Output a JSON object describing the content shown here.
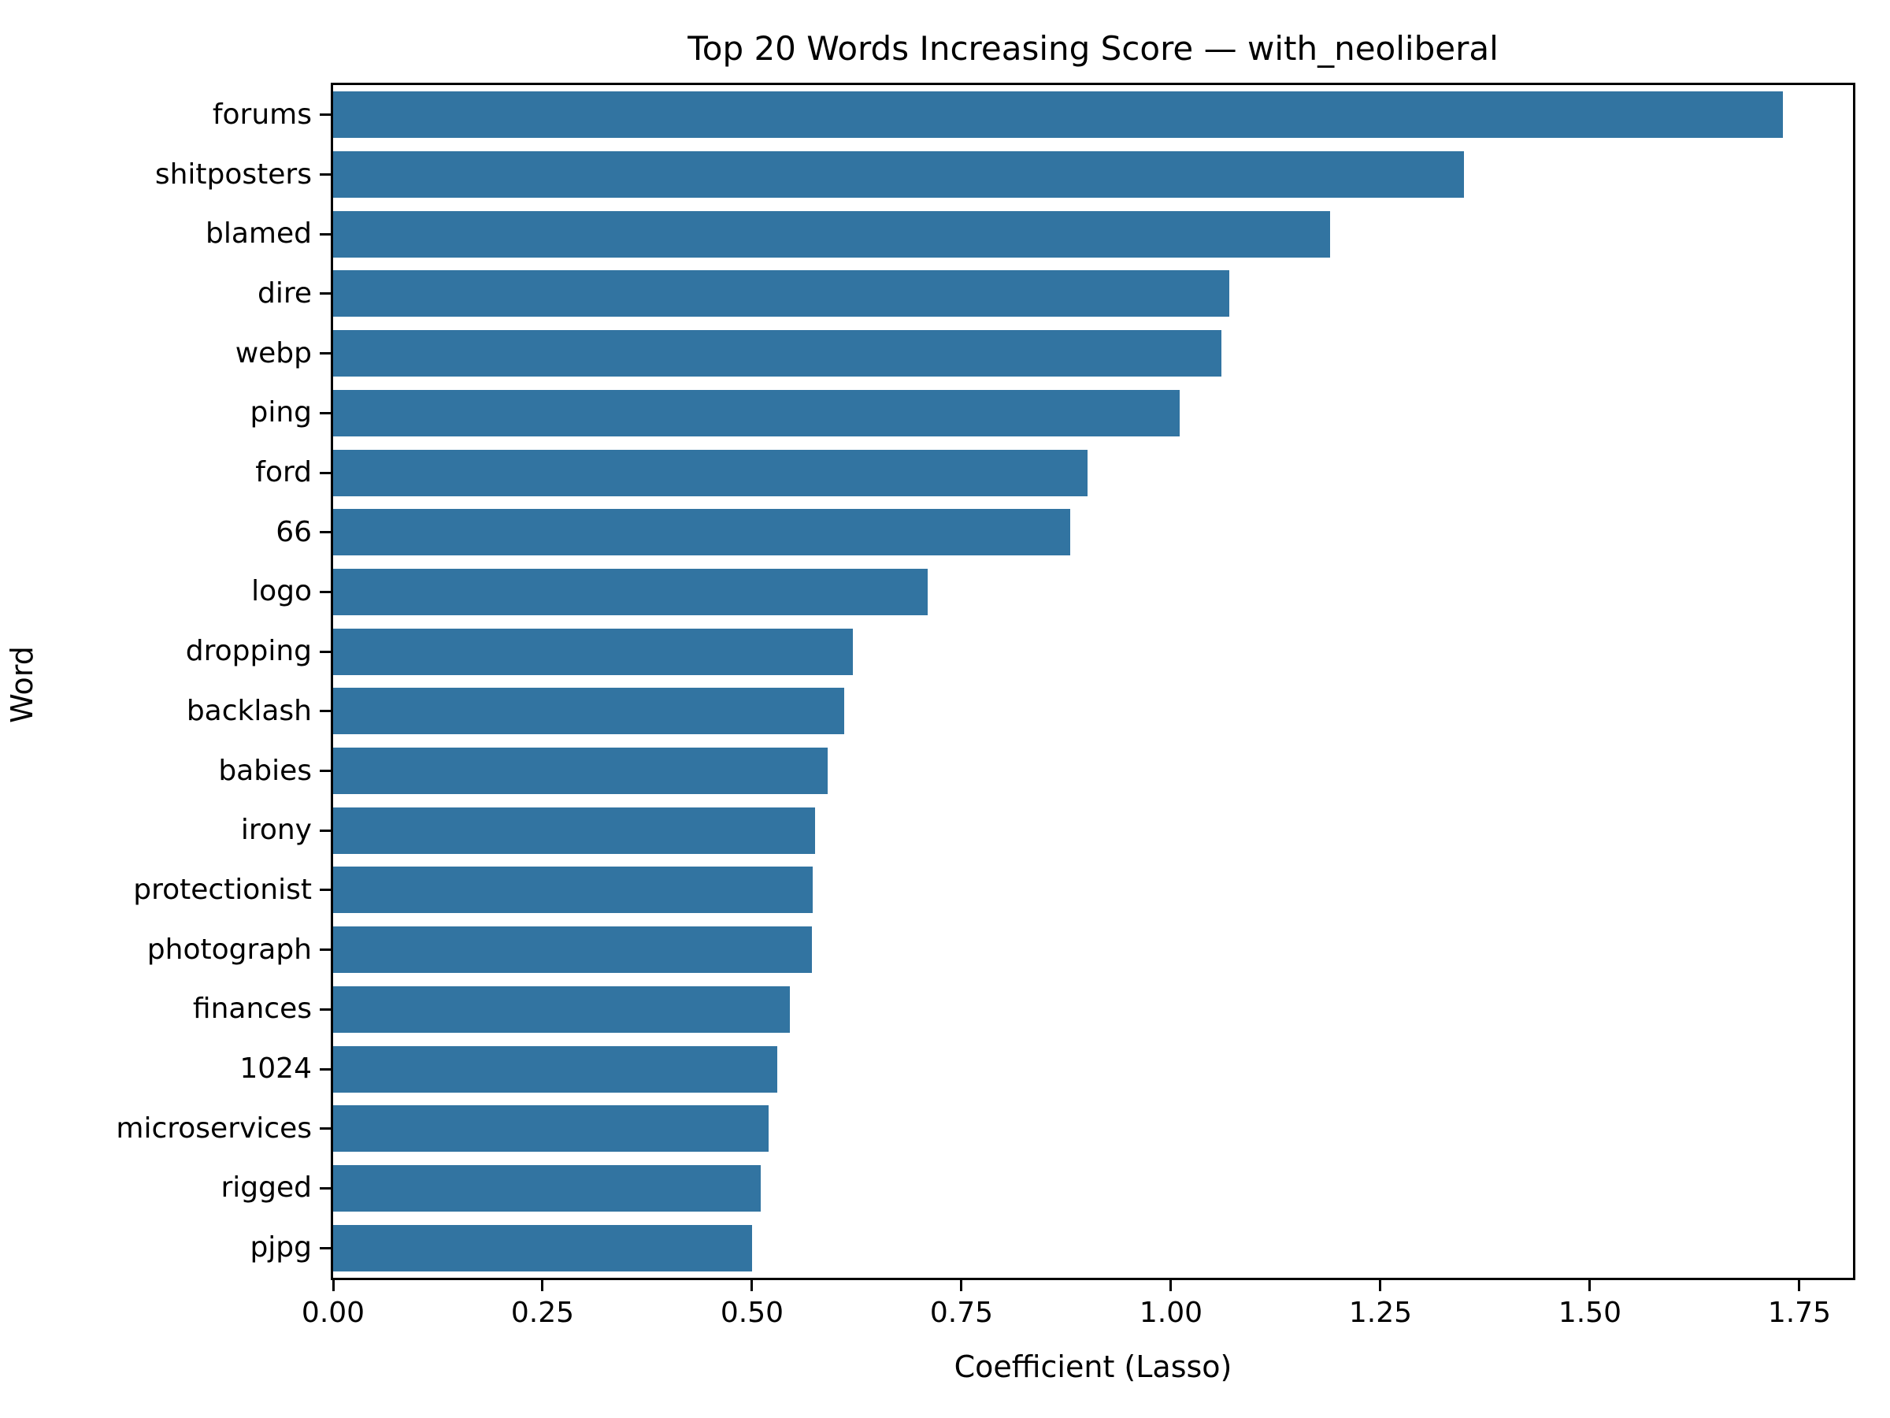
{
  "title": "Top 20 Words Increasing Score — with_neoliberal",
  "chart_data": {
    "type": "bar",
    "orientation": "horizontal",
    "title": "Top 20 Words Increasing Score — with_neoliberal",
    "xlabel": "Coefficient (Lasso)",
    "ylabel": "Word",
    "categories": [
      "forums",
      "shitposters",
      "blamed",
      "dire",
      "webp",
      "ping",
      "ford",
      "66",
      "logo",
      "dropping",
      "backlash",
      "babies",
      "irony",
      "protectionist",
      "photograph",
      "finances",
      "1024",
      "microservices",
      "rigged",
      "pjpg"
    ],
    "values": [
      1.73,
      1.35,
      1.19,
      1.07,
      1.06,
      1.01,
      0.9,
      0.88,
      0.71,
      0.62,
      0.61,
      0.59,
      0.575,
      0.572,
      0.571,
      0.545,
      0.53,
      0.52,
      0.51,
      0.5
    ],
    "x_tick_labels": [
      "0.00",
      "0.25",
      "0.50",
      "0.75",
      "1.00",
      "1.25",
      "1.50",
      "1.75"
    ],
    "x_tick_values": [
      0.0,
      0.25,
      0.5,
      0.75,
      1.0,
      1.25,
      1.5,
      1.75
    ],
    "xlim": [
      0.0,
      1.814
    ],
    "bar_color": "#3274A1",
    "spine_color": "#000000",
    "grid": false,
    "legend_position": "none"
  }
}
